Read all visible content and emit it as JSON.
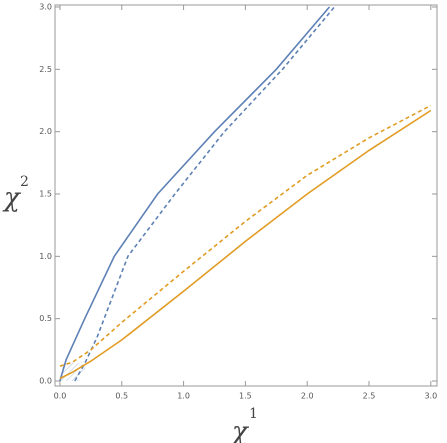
{
  "chart_data": {
    "type": "line",
    "x_label": {
      "base": "χ",
      "sup": "1"
    },
    "y_label": {
      "base": "χ",
      "sup": "2"
    },
    "xlim": [
      -0.04,
      3.05
    ],
    "ylim": [
      -0.04,
      3.016
    ],
    "xticks": [
      {
        "value": 0,
        "label": "0.0"
      },
      0.5,
      {
        "value": 1,
        "label": "1.0"
      },
      1.5,
      {
        "value": 2,
        "label": "2.0"
      },
      2.5,
      {
        "value": 3,
        "label": "3.0"
      }
    ],
    "yticks": [
      {
        "value": 0,
        "label": "0.0"
      },
      0.5,
      {
        "value": 1,
        "label": "1.0"
      },
      1.5,
      {
        "value": 2,
        "label": "2.0"
      },
      2.5,
      {
        "value": 3,
        "label": "3.0"
      }
    ],
    "series": [
      {
        "color": "#5e81b5",
        "dash": false,
        "x": [
          0,
          0.05,
          0.1,
          0.2,
          0.44,
          0.79,
          1.25,
          1.75,
          2.18
        ],
        "values": [
          0,
          0.17,
          0.28,
          0.5,
          1.0,
          1.5,
          2.0,
          2.5,
          3.0
        ]
      },
      {
        "color": "#5e81b5",
        "dash": true,
        "x": [
          0.12,
          0.2,
          0.3,
          0.55,
          0.93,
          1.33,
          1.8,
          2.22
        ],
        "values": [
          0,
          0.14,
          0.35,
          1.0,
          1.5,
          2.0,
          2.5,
          3.0
        ]
      },
      {
        "color": "#e19c24",
        "dash": false,
        "x": [
          0,
          0.1,
          0.25,
          0.5,
          1.0,
          1.5,
          2.0,
          2.5,
          3.0
        ],
        "values": [
          0.02,
          0.07,
          0.16,
          0.33,
          0.72,
          1.12,
          1.5,
          1.85,
          2.17
        ]
      },
      {
        "color": "#e19c24",
        "dash": true,
        "x": [
          0,
          0.1,
          0.25,
          0.5,
          1.0,
          1.5,
          2.0,
          2.5,
          3.0
        ],
        "values": [
          0.12,
          0.15,
          0.25,
          0.47,
          0.88,
          1.28,
          1.65,
          1.95,
          2.21
        ]
      }
    ]
  }
}
